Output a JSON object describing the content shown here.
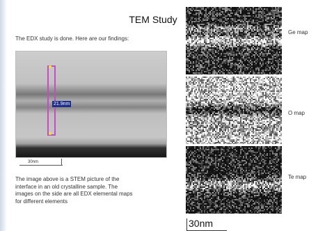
{
  "slide": {
    "title": "TEM Study",
    "intro": "The EDX study is done. Here are our findings:",
    "stem_image": {
      "measurement_label": "21.9nm",
      "scale_label": "30nm"
    },
    "description_lines": [
      "The image above is a STEM picture of the",
      "interface in an old crystalline sample. The",
      "images on the side are all EDX elemental maps",
      "for different elements"
    ],
    "eds_maps": [
      {
        "label": "Ge map"
      },
      {
        "label": "O map"
      },
      {
        "label": "Te map"
      }
    ],
    "scalebar_label": "30nm"
  },
  "colors": {
    "measurement_box": "#c44cc4",
    "measurement_label_bg": "#1c2e8a",
    "marker_yellow": "#e8e820"
  }
}
